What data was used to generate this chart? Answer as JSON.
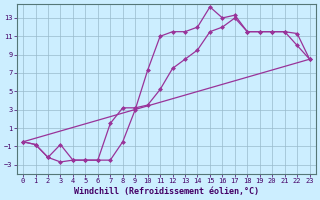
{
  "bg_color": "#cceeff",
  "line_color": "#993399",
  "grid_color": "#99bbcc",
  "xlim": [
    -0.5,
    23.5
  ],
  "ylim": [
    -4,
    14.5
  ],
  "xticks": [
    0,
    1,
    2,
    3,
    4,
    5,
    6,
    7,
    8,
    9,
    10,
    11,
    12,
    13,
    14,
    15,
    16,
    17,
    18,
    19,
    20,
    21,
    22,
    23
  ],
  "yticks": [
    -3,
    -1,
    1,
    3,
    5,
    7,
    9,
    11,
    13
  ],
  "xlabel": "Windchill (Refroidissement éolien,°C)",
  "curve1_x": [
    0,
    1,
    2,
    3,
    4,
    5,
    6,
    7,
    8,
    9,
    10,
    11,
    12,
    13,
    14,
    15,
    16,
    17,
    18,
    19,
    20,
    21,
    22,
    23
  ],
  "curve1_y": [
    -0.5,
    -0.8,
    -2.2,
    -2.7,
    -2.5,
    -2.5,
    -2.5,
    -2.5,
    -0.5,
    3.0,
    7.3,
    11.0,
    11.5,
    11.5,
    12.0,
    14.2,
    13.0,
    13.3,
    11.5,
    11.5,
    11.5,
    11.5,
    10.0,
    8.5
  ],
  "curve2_x": [
    0,
    1,
    2,
    3,
    4,
    5,
    6,
    7,
    8,
    9,
    10,
    11,
    12,
    13,
    14,
    15,
    16,
    17,
    18,
    19,
    20,
    21,
    22,
    23
  ],
  "curve2_y": [
    -0.5,
    -0.8,
    -2.2,
    -0.8,
    -2.5,
    -2.5,
    -2.5,
    1.5,
    3.2,
    3.2,
    3.5,
    5.2,
    7.5,
    8.5,
    9.5,
    11.5,
    12.0,
    13.0,
    11.5,
    11.5,
    11.5,
    11.5,
    11.3,
    8.5
  ],
  "curve3_x": [
    0,
    23
  ],
  "curve3_y": [
    -0.5,
    8.5
  ],
  "ms": 2.5,
  "lw": 0.9,
  "tick_fs": 5.0,
  "label_fs": 6.0
}
